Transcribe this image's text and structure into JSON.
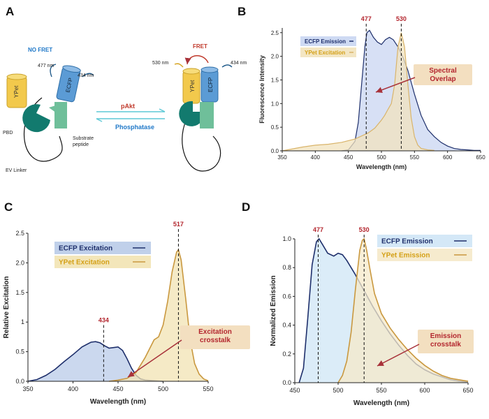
{
  "panels": {
    "a": "A",
    "b": "B",
    "c": "C",
    "d": "D"
  },
  "diagram": {
    "no_fret": "NO FRET",
    "fret": "FRET",
    "nm_477": "477 nm",
    "nm_434_left": "434 nm",
    "nm_530": "530 nm",
    "nm_434_right": "434 nm",
    "ypet": "YPet",
    "ecfp": "ECFP",
    "ypet_right": "YPet",
    "ecfp_right": "ECFP",
    "pbd": "PBD",
    "substrate_1": "Substrate",
    "substrate_2": "peptide",
    "ev_linker": "EV Linker",
    "pakt": "pAkt",
    "phosphatase": "Phosphatase",
    "colors": {
      "ypet": "#f2c94c",
      "ecfp": "#5b9bd5",
      "pbd": "#127a6e",
      "substrate": "#6fbf9a",
      "red": "#c0392b",
      "blue": "#1f78c8"
    }
  },
  "chart_data": [
    {
      "id": "B",
      "type": "area",
      "xlabel": "Wavelength (nm)",
      "ylabel": "Fluorescence Intensity",
      "xlim": [
        350,
        650
      ],
      "ylim": [
        0,
        2.6
      ],
      "xticks": [
        "350",
        "400",
        "450",
        "500",
        "550",
        "600",
        "650"
      ],
      "yticks": [
        "0.0",
        "0.5",
        "1.0",
        "1.5",
        "2.0",
        "2.5"
      ],
      "vlines": [
        {
          "x": 477,
          "label": "477"
        },
        {
          "x": 530,
          "label": "530"
        }
      ],
      "legend": [
        "ECFP Emission",
        "YPet Excitation"
      ],
      "annotation": [
        "Spectral",
        "Overlap"
      ],
      "series": [
        {
          "name": "ECFP Emission",
          "color": "#1e2f6b",
          "fill": "#c9d6f2",
          "x": [
            440,
            450,
            460,
            465,
            470,
            475,
            478,
            482,
            488,
            494,
            500,
            506,
            512,
            518,
            525,
            532,
            540,
            550,
            560,
            570,
            580,
            590,
            600,
            610,
            620,
            630,
            640,
            650
          ],
          "y": [
            0,
            0.02,
            0.2,
            0.6,
            1.4,
            2.2,
            2.5,
            2.55,
            2.4,
            2.3,
            2.25,
            2.35,
            2.4,
            2.35,
            2.2,
            2.0,
            1.7,
            1.2,
            0.75,
            0.45,
            0.3,
            0.18,
            0.1,
            0.05,
            0.03,
            0.02,
            0.01,
            0.01
          ]
        },
        {
          "name": "YPet Excitation",
          "color": "#d9b46a",
          "fill": "#f2e3bd",
          "x": [
            350,
            380,
            400,
            420,
            440,
            460,
            480,
            490,
            500,
            505,
            510,
            515,
            520,
            525,
            530,
            535,
            540,
            545,
            550,
            555,
            560,
            570,
            580
          ],
          "y": [
            0,
            0.08,
            0.12,
            0.14,
            0.18,
            0.25,
            0.38,
            0.48,
            0.65,
            0.75,
            0.88,
            1.0,
            1.4,
            2.2,
            2.5,
            2.2,
            1.4,
            0.7,
            0.3,
            0.12,
            0.05,
            0.02,
            0.01
          ]
        }
      ]
    },
    {
      "id": "C",
      "type": "area",
      "xlabel": "Wavelength (nm)",
      "ylabel": "Relative Excitation",
      "xlim": [
        350,
        550
      ],
      "ylim": [
        0,
        2.5
      ],
      "xticks": [
        "350",
        "400",
        "450",
        "500",
        "550"
      ],
      "yticks": [
        "0.0",
        "0.5",
        "1",
        "1.5",
        "2.0",
        "2.5"
      ],
      "vlines": [
        {
          "x": 434,
          "label": "434"
        },
        {
          "x": 517,
          "label": "517"
        }
      ],
      "legend": [
        "ECFP Excitation",
        "YPet  Excitation"
      ],
      "annotation": [
        "Excitation",
        "crosstalk"
      ],
      "series": [
        {
          "name": "ECFP Excitation",
          "color": "#1e2f6b",
          "fill": "#b9cbe8",
          "x": [
            350,
            360,
            370,
            380,
            390,
            400,
            410,
            420,
            425,
            430,
            435,
            440,
            445,
            450,
            455,
            460,
            465,
            470,
            475,
            480,
            490,
            500
          ],
          "y": [
            0,
            0.03,
            0.1,
            0.2,
            0.33,
            0.45,
            0.58,
            0.66,
            0.67,
            0.65,
            0.6,
            0.56,
            0.57,
            0.58,
            0.52,
            0.38,
            0.22,
            0.1,
            0.04,
            0.02,
            0.01,
            0
          ]
        },
        {
          "name": "YPet Excitation",
          "color": "#c9983f",
          "fill": "#f2e3b3",
          "x": [
            440,
            450,
            460,
            470,
            480,
            490,
            495,
            500,
            505,
            510,
            515,
            517,
            520,
            525,
            530,
            535,
            540,
            545,
            550
          ],
          "y": [
            0,
            0.02,
            0.05,
            0.15,
            0.4,
            0.7,
            0.75,
            0.95,
            1.35,
            1.85,
            2.18,
            2.22,
            2.05,
            1.4,
            0.7,
            0.3,
            0.12,
            0.04,
            0.01
          ]
        }
      ]
    },
    {
      "id": "D",
      "type": "area",
      "xlabel": "Wavelength (nm)",
      "ylabel": "Normalized Emission",
      "xlim": [
        450,
        650
      ],
      "ylim": [
        0,
        1.0
      ],
      "xticks": [
        "450",
        "500",
        "550",
        "600",
        "650"
      ],
      "yticks": [
        "0.0",
        "0.2",
        "0.4",
        "0.6",
        "0.8",
        "1.0"
      ],
      "vlines": [
        {
          "x": 477,
          "label": "477"
        },
        {
          "x": 530,
          "label": "530"
        }
      ],
      "legend": [
        "ECFP Emission",
        "YPet  Emission"
      ],
      "annotation": [
        "Emission",
        "crosstalk"
      ],
      "series": [
        {
          "name": "ECFP Emission",
          "color": "#1e2f6b",
          "fill": "#cfe6f6",
          "x": [
            455,
            460,
            465,
            470,
            475,
            478,
            482,
            488,
            495,
            500,
            505,
            510,
            515,
            520,
            530,
            540,
            550,
            560,
            570,
            580,
            590,
            600,
            610,
            620,
            630,
            640,
            650
          ],
          "y": [
            0,
            0.1,
            0.45,
            0.82,
            0.98,
            1.0,
            0.96,
            0.9,
            0.88,
            0.9,
            0.89,
            0.85,
            0.8,
            0.75,
            0.64,
            0.53,
            0.43,
            0.34,
            0.26,
            0.19,
            0.13,
            0.09,
            0.06,
            0.04,
            0.02,
            0.01,
            0.005
          ]
        },
        {
          "name": "YPet Emission",
          "color": "#c9983f",
          "fill": "#f5e9c9",
          "x": [
            500,
            505,
            510,
            515,
            520,
            525,
            528,
            530,
            533,
            537,
            542,
            550,
            560,
            570,
            580,
            590,
            600,
            610,
            620,
            630,
            640,
            650
          ],
          "y": [
            0,
            0.05,
            0.15,
            0.35,
            0.65,
            0.92,
            0.99,
            1.0,
            0.92,
            0.78,
            0.62,
            0.48,
            0.38,
            0.3,
            0.23,
            0.17,
            0.12,
            0.08,
            0.05,
            0.03,
            0.02,
            0.01
          ]
        }
      ]
    }
  ]
}
